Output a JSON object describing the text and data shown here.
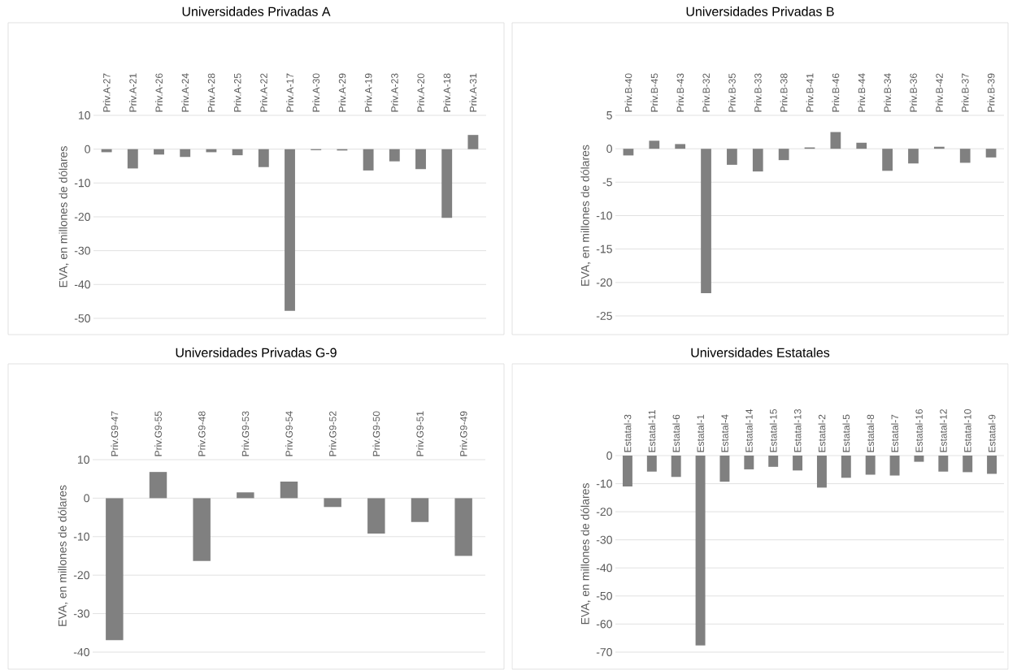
{
  "chart_data": [
    {
      "type": "bar",
      "title": "Universidades Privadas A",
      "ylabel": "EVA, en millones de dólares",
      "categories": [
        "Priv.A-27",
        "Priv.A-21",
        "Priv.A-26",
        "Priv.A-24",
        "Priv.A-28",
        "Priv.A-25",
        "Priv.A-22",
        "Priv.A-17",
        "Priv.A-30",
        "Priv.A-29",
        "Priv.A-19",
        "Priv.A-23",
        "Priv.A-20",
        "Priv.A-18",
        "Priv.A-31"
      ],
      "values": [
        -0.9,
        -5.7,
        -1.6,
        -2.3,
        -0.9,
        -1.8,
        -5.3,
        -47.8,
        -0.3,
        -0.4,
        -6.3,
        -3.6,
        -5.9,
        -20.3,
        4.2
      ],
      "color": "#808080",
      "ylim": [
        -50,
        10
      ],
      "yticks": [
        -50,
        -40,
        -30,
        -20,
        -10,
        0,
        10
      ],
      "grid": "y"
    },
    {
      "type": "bar",
      "title": "Universidades Privadas B",
      "ylabel": "EVA, en millones de dólares",
      "categories": [
        "Priv.B-40",
        "Priv.B-45",
        "Priv.B-43",
        "Priv.B-32",
        "Priv.B-35",
        "Priv.B-33",
        "Priv.B-38",
        "Priv.B-41",
        "Priv.B-46",
        "Priv.B-44",
        "Priv.B-34",
        "Priv.B-36",
        "Priv.B-42",
        "Priv.B-37",
        "Priv.B-39"
      ],
      "values": [
        -1.0,
        1.2,
        0.7,
        -21.6,
        -2.4,
        -3.4,
        -1.7,
        0.2,
        2.5,
        0.9,
        -3.3,
        -2.2,
        0.3,
        -2.1,
        -1.3
      ],
      "color": "#808080",
      "ylim": [
        -25,
        5
      ],
      "yticks": [
        -25,
        -20,
        -15,
        -10,
        -5,
        0,
        5
      ],
      "grid": "y"
    },
    {
      "type": "bar",
      "title": "Universidades Privadas G-9",
      "ylabel": "EVA, en millones de dólares",
      "categories": [
        "Priv.G9-47",
        "Priv.G9-55",
        "Priv.G9-48",
        "Priv.G9-53",
        "Priv.G9-54",
        "Priv.G9-52",
        "Priv.G9-50",
        "Priv.G9-51",
        "Priv.G9-49"
      ],
      "values": [
        -36.9,
        6.8,
        -16.3,
        1.5,
        4.3,
        -2.3,
        -9.2,
        -6.2,
        -15.0
      ],
      "color": "#808080",
      "ylim": [
        -40,
        10
      ],
      "yticks": [
        -40,
        -30,
        -20,
        -10,
        0,
        10
      ],
      "grid": "y"
    },
    {
      "type": "bar",
      "title": "Universidades Estatales",
      "ylabel": "EVA, en millones de dólares",
      "categories": [
        "Estatal-3",
        "Estatal-11",
        "Estatal-6",
        "Estatal-1",
        "Estatal-4",
        "Estatal-14",
        "Estatal-15",
        "Estatal-13",
        "Estatal-2",
        "Estatal-5",
        "Estatal-8",
        "Estatal-7",
        "Estatal-16",
        "Estatal-12",
        "Estatal-10",
        "Estatal-9"
      ],
      "values": [
        -11.0,
        -5.7,
        -7.6,
        -67.6,
        -9.3,
        -4.9,
        -4.0,
        -5.3,
        -11.4,
        -7.9,
        -6.8,
        -7.1,
        -2.2,
        -5.7,
        -5.9,
        -6.5
      ],
      "color": "#808080",
      "ylim": [
        -70,
        0
      ],
      "yticks": [
        -70,
        -60,
        -50,
        -40,
        -30,
        -20,
        -10,
        0
      ],
      "grid": "y"
    }
  ]
}
